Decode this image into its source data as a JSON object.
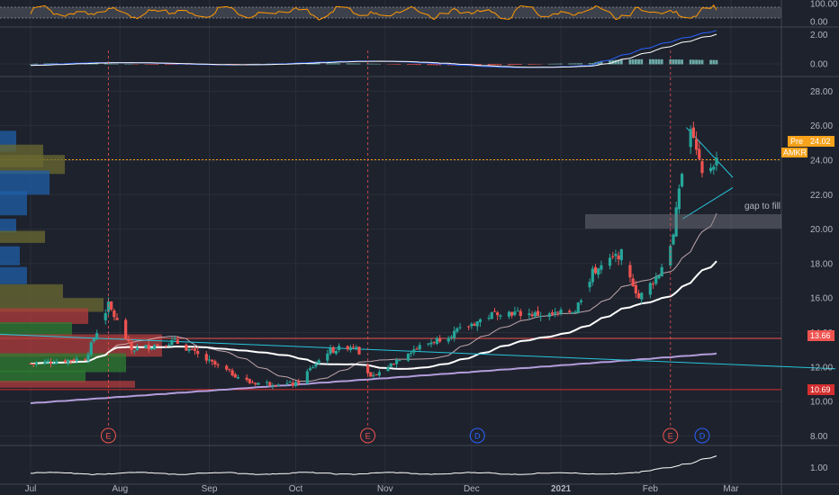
{
  "ticker": "AMKR",
  "colors": {
    "background": "#1e222d",
    "grid": "#2a2e39",
    "up": "#26a69a",
    "down": "#ef5350",
    "sma_fast": "#e8c8cc",
    "sma_mid": "#ffffff",
    "sma_slow": "#b39ddb",
    "trendline": "#26c6da",
    "earnings": "#ef5350",
    "dividend": "#2962ff",
    "pre_badge": "#f7a21b",
    "ticker_badge": "#f7a21b",
    "level_13": "#ef5350",
    "level_10": "#d32f2f"
  },
  "price_labels": {
    "pre_tag": "Pre",
    "pre_value": "24.02",
    "ticker_tag": "AMKR",
    "level_a": "13.66",
    "level_b": "10.69"
  },
  "annotation": "gap to fill",
  "events": [
    {
      "label": "E",
      "date": "2020-07-28",
      "type": "earnings"
    },
    {
      "label": "E",
      "date": "2020-10-26",
      "type": "earnings"
    },
    {
      "label": "D",
      "date": "2020-12-03",
      "type": "dividend"
    },
    {
      "label": "E",
      "date": "2021-02-08",
      "type": "earnings"
    },
    {
      "label": "D",
      "date": "2021-02-19",
      "type": "dividend"
    }
  ],
  "chart_data": [
    {
      "type": "line",
      "panel": "oscillator",
      "y_ticks": [
        "100.00",
        "0.00"
      ],
      "ylim": [
        0,
        100
      ],
      "color": "#ff9800"
    },
    {
      "type": "bar",
      "panel": "macd",
      "y_ticks": [
        "2.00",
        "0.00"
      ],
      "ylim": [
        -0.8,
        2.4
      ]
    },
    {
      "type": "candlestick",
      "panel": "price",
      "y_ticks": [
        "28.00",
        "26.00",
        "24.00",
        "22.00",
        "20.00",
        "18.00",
        "16.00",
        "14.00",
        "12.00",
        "10.00",
        "8.00"
      ],
      "ylim": [
        7.5,
        28.8
      ],
      "x_ticks": [
        "Jul",
        "Aug",
        "Sep",
        "Oct",
        "Nov",
        "Dec",
        "2021",
        "Feb",
        "Mar"
      ],
      "horizontal_levels": [
        24.02,
        13.66,
        10.69
      ],
      "gap_zone": [
        19.8,
        20.4
      ],
      "anchors": [
        {
          "date": "2020-07-01",
          "close": 12.2
        },
        {
          "date": "2020-07-20",
          "close": 12.5
        },
        {
          "date": "2020-07-28",
          "close": 15.6
        },
        {
          "date": "2020-08-05",
          "close": 13.0
        },
        {
          "date": "2020-08-20",
          "close": 13.5
        },
        {
          "date": "2020-09-01",
          "close": 12.3
        },
        {
          "date": "2020-09-15",
          "close": 11.1
        },
        {
          "date": "2020-10-01",
          "close": 11.0
        },
        {
          "date": "2020-10-12",
          "close": 12.9
        },
        {
          "date": "2020-10-22",
          "close": 13.3
        },
        {
          "date": "2020-10-27",
          "close": 11.3
        },
        {
          "date": "2020-11-09",
          "close": 12.9
        },
        {
          "date": "2020-11-25",
          "close": 14.0
        },
        {
          "date": "2020-12-10",
          "close": 15.2
        },
        {
          "date": "2020-12-28",
          "close": 15.0
        },
        {
          "date": "2021-01-06",
          "close": 15.3
        },
        {
          "date": "2021-01-12",
          "close": 17.5
        },
        {
          "date": "2021-01-22",
          "close": 18.6
        },
        {
          "date": "2021-01-28",
          "close": 16.0
        },
        {
          "date": "2021-02-04",
          "close": 17.4
        },
        {
          "date": "2021-02-09",
          "close": 19.6
        },
        {
          "date": "2021-02-11",
          "close": 22.4
        },
        {
          "date": "2021-02-15",
          "close": 25.8
        },
        {
          "date": "2021-02-19",
          "close": 23.1
        },
        {
          "date": "2021-02-24",
          "close": 24.02
        }
      ]
    },
    {
      "type": "line",
      "panel": "volume_line",
      "y_ticks": [
        "1.00"
      ],
      "ylim": [
        0,
        2.4
      ]
    }
  ]
}
